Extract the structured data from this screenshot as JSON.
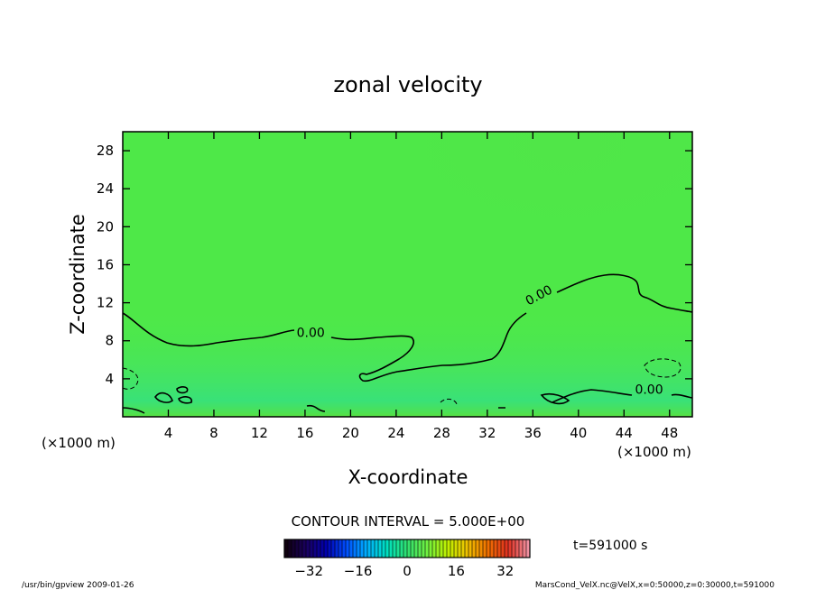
{
  "chart_data": {
    "type": "heatmap",
    "title": "zonal velocity",
    "xlabel": "X-coordinate",
    "ylabel": "Z-coordinate",
    "x_unit": "(×1000 m)",
    "y_unit": "(×1000 m)",
    "xlim": [
      0,
      50
    ],
    "ylim": [
      0,
      30
    ],
    "x_ticks": [
      4,
      8,
      12,
      16,
      20,
      24,
      28,
      32,
      36,
      40,
      44,
      48
    ],
    "y_ticks": [
      4,
      8,
      12,
      16,
      20,
      24,
      28
    ],
    "contour_interval_text": "CONTOUR INTERVAL = 5.000E+00",
    "contour_labels": [
      {
        "text": "0.00",
        "x": 16.5,
        "y": 8.4
      },
      {
        "text": "0.00",
        "x": 36.7,
        "y": 12.4
      },
      {
        "text": "0.00",
        "x": 46.2,
        "y": 2.4
      }
    ],
    "colorbar": {
      "range": [
        -40,
        40
      ],
      "ticks": [
        -32,
        -16,
        0,
        16,
        32
      ],
      "colors": [
        "#100010",
        "#1a0060",
        "#0000b0",
        "#0050ff",
        "#00b0ff",
        "#00e0c0",
        "#30e070",
        "#70f040",
        "#c0f000",
        "#f0c000",
        "#f07000",
        "#e03020",
        "#f090a0"
      ]
    },
    "time_label": "t=591000 s",
    "footer_left": "/usr/bin/gpview  2009-01-26",
    "footer_right": "MarsCond_VelX.nc@VelX,x=0:50000,z=0:30000,t=591000"
  }
}
